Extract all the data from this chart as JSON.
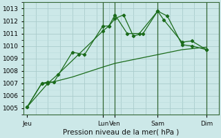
{
  "background_color": "#cce8e8",
  "grid_color_major": "#aacccc",
  "grid_color_minor": "#bbdddd",
  "line_color": "#1a6b1a",
  "marker_color": "#1a6b1a",
  "xlabel": "Pression niveau de la mer( hPa )",
  "ylim": [
    1004.5,
    1013.5
  ],
  "xlim": [
    0,
    16
  ],
  "yticks": [
    1005,
    1006,
    1007,
    1008,
    1009,
    1010,
    1011,
    1012,
    1013
  ],
  "xtick_labels": [
    "Jeu",
    "Lun",
    "Ven",
    "Sam",
    "Dim"
  ],
  "xtick_positions": [
    0.3,
    6.5,
    7.5,
    11.0,
    15.0
  ],
  "vlines": [
    6.5,
    7.5,
    11.0,
    15.0
  ],
  "line1": [
    [
      0.3,
      1005.1
    ],
    [
      1.5,
      1007.0
    ],
    [
      2.0,
      1007.1
    ],
    [
      2.5,
      1007.1
    ],
    [
      4.0,
      1009.5
    ],
    [
      5.0,
      1009.3
    ],
    [
      6.5,
      1011.6
    ],
    [
      7.0,
      1011.6
    ],
    [
      7.5,
      1012.2
    ],
    [
      8.2,
      1012.5
    ],
    [
      9.0,
      1010.8
    ],
    [
      9.8,
      1011.0
    ],
    [
      11.0,
      1012.8
    ],
    [
      11.8,
      1012.4
    ],
    [
      13.0,
      1010.1
    ],
    [
      13.8,
      1010.0
    ],
    [
      15.0,
      1009.7
    ]
  ],
  "line2": [
    [
      0.3,
      1005.1
    ],
    [
      1.5,
      1007.0
    ],
    [
      2.0,
      1007.0
    ],
    [
      2.8,
      1007.7
    ],
    [
      4.5,
      1009.3
    ],
    [
      6.5,
      1011.2
    ],
    [
      7.0,
      1011.6
    ],
    [
      7.5,
      1012.5
    ],
    [
      8.5,
      1011.0
    ],
    [
      9.5,
      1011.0
    ],
    [
      11.0,
      1012.8
    ],
    [
      11.5,
      1012.1
    ],
    [
      13.0,
      1010.3
    ],
    [
      13.8,
      1010.4
    ],
    [
      15.0,
      1009.7
    ]
  ],
  "line3": [
    [
      0.3,
      1005.1
    ],
    [
      2.0,
      1007.0
    ],
    [
      4.0,
      1007.5
    ],
    [
      6.5,
      1008.3
    ],
    [
      7.5,
      1008.6
    ],
    [
      9.0,
      1008.9
    ],
    [
      11.0,
      1009.3
    ],
    [
      13.0,
      1009.7
    ],
    [
      15.0,
      1009.9
    ]
  ]
}
